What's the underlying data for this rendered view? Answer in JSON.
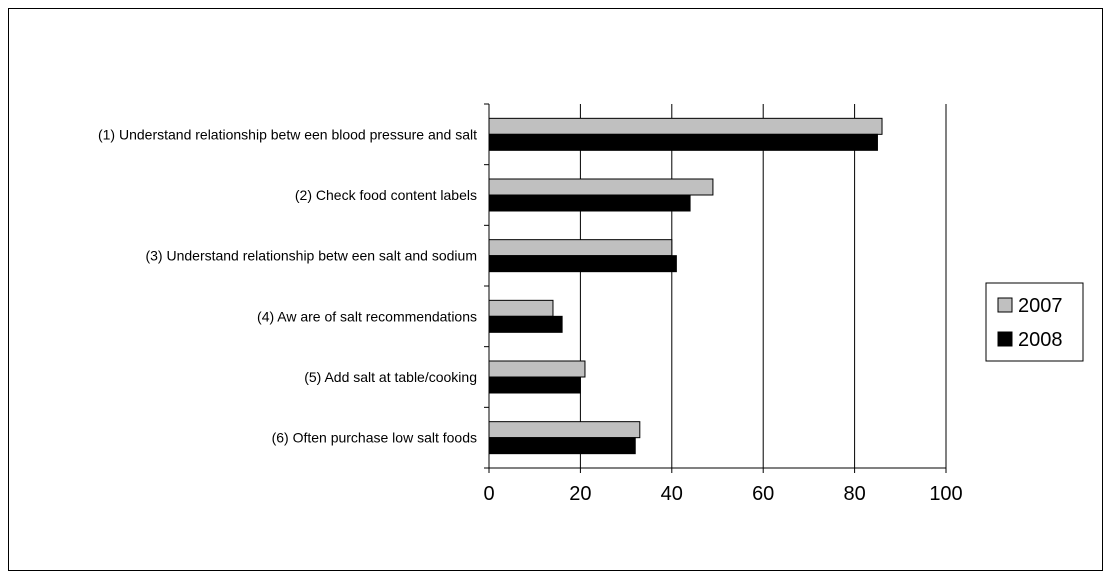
{
  "chart_data": {
    "type": "bar",
    "orientation": "horizontal",
    "title": "",
    "xlabel": "",
    "ylabel": "",
    "categories": [
      "(1) Understand relationship betw een blood pressure and salt",
      "(2) Check food content labels",
      "(3) Understand relationship betw een salt and sodium",
      "(4) Aw are of salt recommendations",
      "(5) Add salt at table/cooking",
      "(6) Often purchase low  salt foods"
    ],
    "series": [
      {
        "name": "2007",
        "color": "#c0c0c0",
        "values": [
          86,
          49,
          40,
          14,
          21,
          33
        ]
      },
      {
        "name": "2008",
        "color": "#000000",
        "values": [
          85,
          44,
          41,
          16,
          20,
          32
        ]
      }
    ],
    "xlim": [
      0,
      100
    ],
    "xticks": [
      0,
      20,
      40,
      60,
      80,
      100
    ],
    "grid": "vertical",
    "legend_position": "right"
  }
}
